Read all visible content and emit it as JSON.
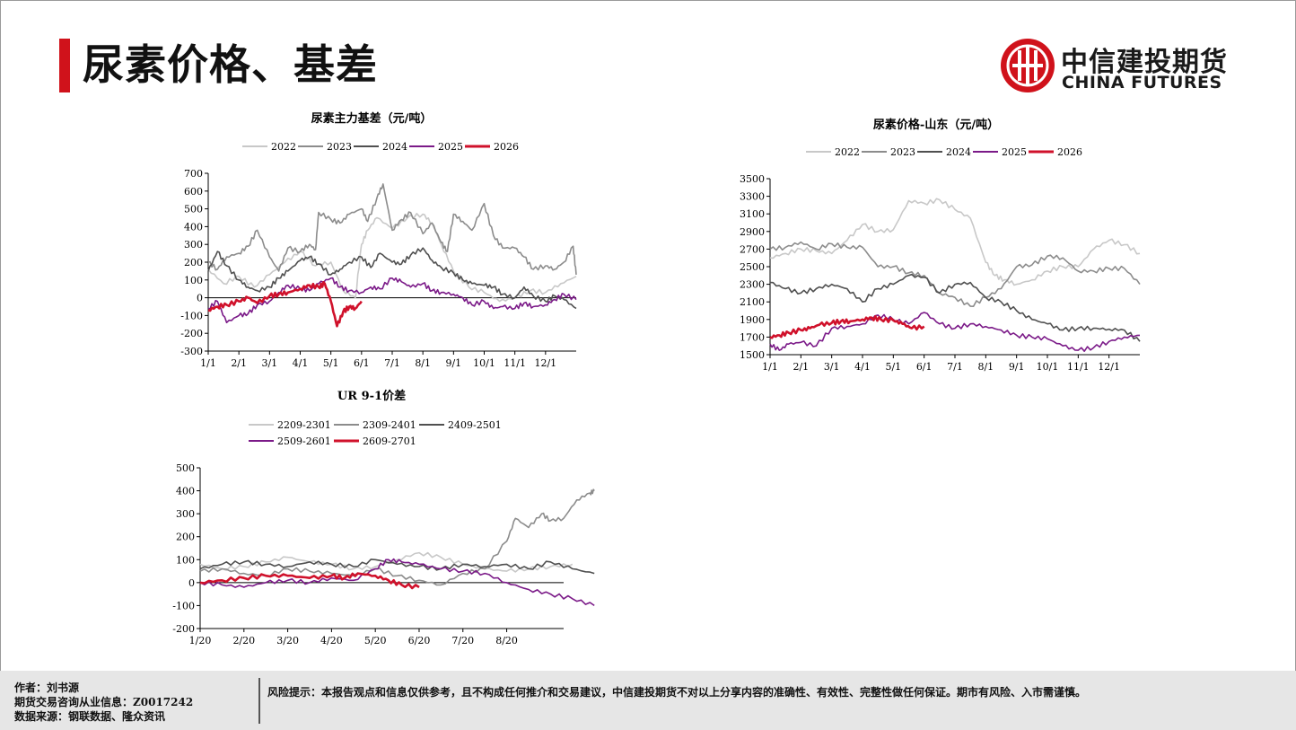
{
  "header": {
    "title": "尿素价格、基差",
    "logo_cn": "中信建投期货",
    "logo_en": "CHINA FUTURES"
  },
  "colors": {
    "2022": "#c8c8c8",
    "2023": "#8c8c8c",
    "2024": "#505050",
    "2025": "#7b1a88",
    "2026": "#d0112b",
    "accent": "#d0121b"
  },
  "chart_data": [
    {
      "type": "line",
      "title": "尿素主力基差（元/吨）",
      "x_tick_labels": [
        "1/1",
        "2/1",
        "3/1",
        "4/1",
        "5/1",
        "6/1",
        "7/1",
        "8/1",
        "9/1",
        "10/1",
        "11/1",
        "12/1"
      ],
      "ylim": [
        -300,
        700
      ],
      "y_ticks": [
        -300,
        -200,
        -100,
        0,
        100,
        200,
        300,
        400,
        500,
        600,
        700
      ],
      "x_unit": "month",
      "series": [
        {
          "name": "2022",
          "x": [
            0,
            0.5,
            1,
            1.5,
            2,
            2.5,
            3,
            3.5,
            4,
            4.4,
            4.8,
            5,
            5.2,
            5.5,
            6,
            6.5,
            7,
            7.3,
            7.6,
            8,
            8.5,
            9,
            9.5,
            10,
            10.5,
            11,
            11.5,
            12
          ],
          "values": [
            160,
            80,
            120,
            60,
            130,
            200,
            260,
            180,
            200,
            40,
            0,
            300,
            380,
            450,
            390,
            450,
            470,
            420,
            300,
            150,
            60,
            30,
            -20,
            0,
            40,
            30,
            80,
            120
          ]
        },
        {
          "name": "2023",
          "x": [
            0,
            0.3,
            0.6,
            1,
            1.3,
            1.6,
            2,
            2.3,
            2.6,
            3,
            3.3,
            3.5,
            3.6,
            4,
            4.3,
            4.6,
            5,
            5.2,
            5.5,
            5.7,
            6,
            6.3,
            6.6,
            7,
            7.3,
            7.6,
            7.8,
            8,
            8.3,
            8.6,
            9,
            9.3,
            9.6,
            10,
            10.3,
            10.6,
            11,
            11.3,
            11.6,
            11.9,
            12
          ],
          "values": [
            200,
            160,
            230,
            250,
            290,
            380,
            230,
            150,
            280,
            260,
            300,
            270,
            480,
            440,
            420,
            470,
            500,
            430,
            560,
            640,
            380,
            440,
            480,
            360,
            420,
            310,
            260,
            470,
            430,
            380,
            530,
            350,
            280,
            280,
            230,
            160,
            180,
            160,
            200,
            290,
            130
          ]
        },
        {
          "name": "2024",
          "x": [
            0,
            0.3,
            0.6,
            1,
            1.3,
            1.6,
            2,
            2.3,
            2.6,
            3,
            3.3,
            3.6,
            4,
            4.3,
            4.6,
            5,
            5.3,
            5.6,
            6,
            6.3,
            6.6,
            7,
            7.3,
            7.6,
            8,
            8.3,
            8.6,
            9,
            9.3,
            9.6,
            10,
            10.3,
            10.6,
            11,
            11.3,
            11.6,
            12
          ],
          "values": [
            150,
            260,
            180,
            100,
            60,
            40,
            60,
            110,
            150,
            210,
            230,
            190,
            130,
            160,
            200,
            230,
            170,
            250,
            200,
            190,
            240,
            280,
            210,
            170,
            140,
            100,
            80,
            70,
            60,
            20,
            0,
            60,
            10,
            -20,
            10,
            -10,
            -60
          ]
        },
        {
          "name": "2025",
          "x": [
            0,
            0.3,
            0.6,
            1,
            1.3,
            1.6,
            2,
            2.3,
            2.6,
            3,
            3.3,
            3.6,
            4,
            4.3,
            4.6,
            5,
            5.3,
            5.6,
            6,
            6.3,
            6.6,
            7,
            7.3,
            7.6,
            8,
            8.3,
            8.6,
            9,
            9.3,
            9.6,
            10,
            10.3,
            10.6,
            11,
            11.3,
            11.6,
            12
          ],
          "values": [
            -60,
            -20,
            -140,
            -100,
            -90,
            -40,
            -20,
            30,
            70,
            50,
            40,
            80,
            110,
            60,
            40,
            30,
            60,
            50,
            110,
            90,
            60,
            80,
            40,
            30,
            20,
            0,
            -40,
            -20,
            -60,
            -50,
            -60,
            -30,
            -50,
            -40,
            -10,
            20,
            -10
          ]
        },
        {
          "name": "2026",
          "x": [
            0,
            0.3,
            0.6,
            1,
            1.3,
            1.6,
            2,
            2.3,
            2.6,
            3,
            3.3,
            3.6,
            3.8,
            4,
            4.2,
            4.4,
            4.6,
            4.8,
            5
          ],
          "values": [
            -70,
            -50,
            -40,
            -20,
            0,
            -30,
            10,
            20,
            30,
            50,
            70,
            60,
            80,
            -20,
            -160,
            -80,
            -50,
            -60,
            -20
          ]
        }
      ]
    },
    {
      "type": "line",
      "title": "尿素价格-山东（元/吨）",
      "x_tick_labels": [
        "1/1",
        "2/1",
        "3/1",
        "4/1",
        "5/1",
        "6/1",
        "7/1",
        "8/1",
        "9/1",
        "10/1",
        "11/1",
        "12/1"
      ],
      "ylim": [
        1500,
        3500
      ],
      "y_ticks": [
        1500,
        1700,
        1900,
        2100,
        2300,
        2500,
        2700,
        2900,
        3100,
        3300,
        3500
      ],
      "x_unit": "month",
      "series": [
        {
          "name": "2022",
          "x": [
            0,
            0.5,
            1,
            1.5,
            2,
            2.5,
            3,
            3.5,
            4,
            4.5,
            5,
            5.5,
            6,
            6.5,
            7,
            7.3,
            7.6,
            8,
            8.5,
            9,
            9.5,
            10,
            10.5,
            11,
            11.5,
            12
          ],
          "values": [
            2600,
            2650,
            2700,
            2680,
            2650,
            2800,
            2980,
            2900,
            2920,
            3250,
            3220,
            3260,
            3150,
            3050,
            2550,
            2400,
            2350,
            2300,
            2350,
            2450,
            2500,
            2500,
            2700,
            2800,
            2750,
            2650
          ]
        },
        {
          "name": "2023",
          "x": [
            0,
            0.5,
            1,
            1.5,
            2,
            2.5,
            3,
            3.5,
            4,
            4.5,
            5,
            5.5,
            6,
            6.5,
            7,
            7.5,
            8,
            8.5,
            9,
            9.5,
            10,
            10.5,
            11,
            11.5,
            12
          ],
          "values": [
            2700,
            2720,
            2780,
            2700,
            2760,
            2720,
            2720,
            2500,
            2500,
            2430,
            2400,
            2200,
            2150,
            2050,
            2150,
            2250,
            2500,
            2520,
            2620,
            2600,
            2450,
            2450,
            2480,
            2480,
            2300
          ]
        },
        {
          "name": "2024",
          "x": [
            0,
            0.5,
            1,
            1.5,
            2,
            2.5,
            3,
            3.5,
            4,
            4.5,
            5,
            5.5,
            6,
            6.5,
            7,
            7.5,
            8,
            8.5,
            9,
            9.5,
            10,
            10.5,
            11,
            11.5,
            12
          ],
          "values": [
            2320,
            2250,
            2200,
            2250,
            2300,
            2250,
            2100,
            2250,
            2300,
            2400,
            2380,
            2200,
            2300,
            2320,
            2150,
            2100,
            2000,
            1900,
            1850,
            1780,
            1800,
            1800,
            1790,
            1780,
            1650
          ]
        },
        {
          "name": "2025",
          "x": [
            0,
            0.3,
            0.6,
            1,
            1.5,
            2,
            2.5,
            3,
            3.5,
            4,
            4.5,
            5,
            5.5,
            6,
            6.5,
            7,
            7.5,
            8,
            8.5,
            9,
            9.5,
            10,
            10.5,
            11,
            11.5,
            12
          ],
          "values": [
            1620,
            1550,
            1620,
            1640,
            1600,
            1800,
            1820,
            1850,
            1950,
            1900,
            1850,
            1980,
            1850,
            1800,
            1850,
            1820,
            1780,
            1720,
            1700,
            1680,
            1600,
            1550,
            1580,
            1650,
            1700,
            1720
          ]
        },
        {
          "name": "2026",
          "x": [
            0,
            0.3,
            0.6,
            1,
            1.3,
            1.6,
            2,
            2.3,
            2.6,
            3,
            3.3,
            3.6,
            4,
            4.3,
            4.6,
            5
          ],
          "values": [
            1700,
            1720,
            1750,
            1780,
            1800,
            1840,
            1860,
            1880,
            1880,
            1900,
            1920,
            1900,
            1890,
            1850,
            1800,
            1820
          ]
        }
      ]
    },
    {
      "type": "line",
      "title": "UR 9-1价差",
      "x_tick_labels": [
        "1/20",
        "2/20",
        "3/20",
        "4/20",
        "5/20",
        "6/20",
        "7/20",
        "8/20"
      ],
      "ylim": [
        -200,
        500
      ],
      "y_ticks": [
        -200,
        -100,
        0,
        100,
        200,
        300,
        400,
        500
      ],
      "x_unit": "month",
      "series": [
        {
          "name": "2209-2301",
          "x": [
            0,
            0.5,
            1,
            1.5,
            2,
            2.5,
            3,
            3.5,
            4,
            4.5,
            5,
            5.5,
            6,
            6.5,
            7,
            7.5,
            8,
            8.5
          ],
          "values": [
            80,
            60,
            70,
            90,
            110,
            90,
            80,
            60,
            70,
            100,
            130,
            110,
            80,
            60,
            50,
            60,
            70,
            80
          ]
        },
        {
          "name": "2309-2401",
          "x": [
            0,
            0.5,
            1,
            1.5,
            2,
            2.5,
            3,
            3.5,
            4,
            4.5,
            5,
            5.5,
            6,
            6.5,
            7,
            7.2,
            7.5,
            7.8,
            8,
            8.3,
            8.6,
            8.9,
            9
          ],
          "values": [
            50,
            60,
            40,
            30,
            60,
            50,
            40,
            30,
            60,
            30,
            10,
            -10,
            40,
            60,
            180,
            280,
            240,
            300,
            270,
            280,
            360,
            390,
            400
          ]
        },
        {
          "name": "2409-2501",
          "x": [
            0,
            0.5,
            1,
            1.5,
            2,
            2.5,
            3,
            3.5,
            4,
            4.5,
            5,
            5.5,
            6,
            6.5,
            7,
            7.5,
            8,
            8.5,
            9
          ],
          "values": [
            60,
            80,
            90,
            80,
            70,
            90,
            80,
            70,
            100,
            80,
            70,
            60,
            80,
            70,
            80,
            60,
            90,
            60,
            40
          ]
        },
        {
          "name": "2509-2601",
          "x": [
            0,
            0.5,
            1,
            1.5,
            2,
            2.5,
            3,
            3.5,
            4,
            4.3,
            4.6,
            5,
            5.5,
            6,
            6.5,
            7,
            7.5,
            8,
            8.5,
            9
          ],
          "values": [
            0,
            -10,
            -20,
            0,
            10,
            0,
            20,
            10,
            60,
            100,
            90,
            80,
            60,
            50,
            40,
            0,
            -30,
            -50,
            -70,
            -100
          ]
        },
        {
          "name": "2609-2701",
          "x": [
            0,
            0.5,
            1,
            1.5,
            2,
            2.5,
            3,
            3.3,
            3.6,
            4,
            4.3,
            4.6,
            5
          ],
          "values": [
            0,
            10,
            20,
            30,
            30,
            20,
            30,
            20,
            40,
            30,
            10,
            -10,
            -20
          ]
        }
      ]
    }
  ],
  "footer": {
    "author": "作者：刘书源",
    "license": "期货交易咨询从业信息：Z0017242",
    "source": "数据来源：钢联数据、隆众资讯",
    "risk": "风险提示：本报告观点和信息仅供参考，且不构成任何推介和交易建议，中信建投期货不对以上分享内容的准确性、有效性、完整性做任何保证。期市有风险、入市需谨慎。"
  }
}
